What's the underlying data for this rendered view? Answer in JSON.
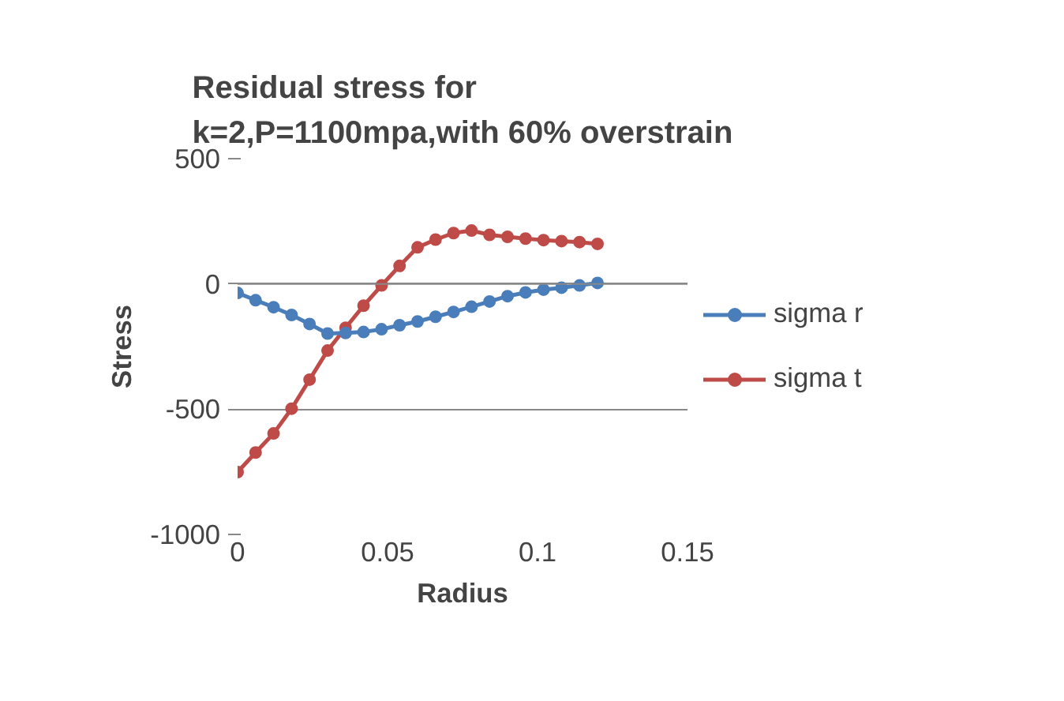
{
  "chart_data": {
    "type": "line",
    "title": "Residual stress for\nk=2,P=1100mpa,with 60% overstrain",
    "xlabel": "Radius",
    "ylabel": "Stress",
    "x": [
      0,
      0.006,
      0.012,
      0.018,
      0.024,
      0.03,
      0.036,
      0.042,
      0.048,
      0.054,
      0.06,
      0.066,
      0.072,
      0.078,
      0.084,
      0.09,
      0.096,
      0.102,
      0.108,
      0.114,
      0.12
    ],
    "xlim": [
      0,
      0.15
    ],
    "xticks": [
      0,
      0.05,
      0.1,
      0.15
    ],
    "ylim": [
      -1000,
      500
    ],
    "yticks": [
      -1000,
      -500,
      0,
      500
    ],
    "grid": "y",
    "legend": "right",
    "marker": "circle",
    "line_style": "solid",
    "series": [
      {
        "name": "sigma r",
        "color": "#4a7ebb",
        "values": [
          -36,
          -65,
          -93,
          -124,
          -160,
          -198,
          -196,
          -192,
          -181,
          -165,
          -150,
          -131,
          -112,
          -91,
          -70,
          -49,
          -34,
          -23,
          -15,
          -6,
          4
        ]
      },
      {
        "name": "sigma t",
        "color": "#be4b48",
        "values": [
          -751,
          -673,
          -597,
          -498,
          -382,
          -266,
          -175,
          -87,
          -6,
          72,
          146,
          177,
          203,
          213,
          196,
          188,
          181,
          175,
          171,
          167,
          160
        ]
      }
    ]
  }
}
